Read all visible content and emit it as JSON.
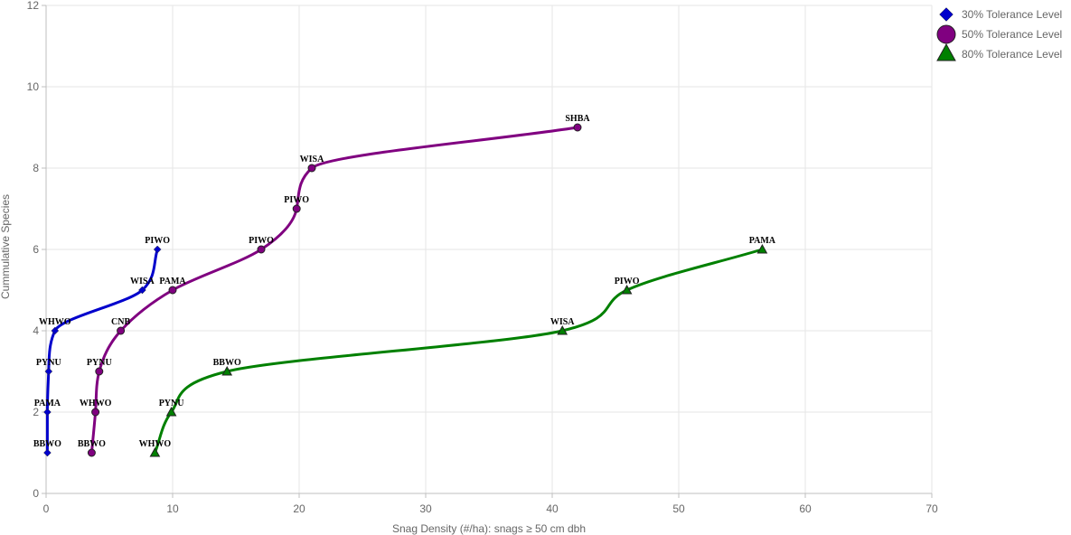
{
  "chart_data": {
    "type": "line",
    "title": "",
    "xlabel": "Snag Density (#/ha): snags ≥ 50 cm dbh",
    "ylabel": "Cummulative Species",
    "xlim": [
      0,
      70
    ],
    "ylim": [
      0,
      12
    ],
    "x_ticks": [
      "0",
      "10",
      "20",
      "30",
      "40",
      "50",
      "60",
      "70"
    ],
    "y_ticks": [
      "0",
      "2",
      "4",
      "6",
      "8",
      "10",
      "12"
    ],
    "grid": true,
    "legend_position": "top-right",
    "series": [
      {
        "name": "30% Tolerance Level",
        "color": "#0000cc",
        "marker": "diamond",
        "points": [
          {
            "x": 0.1,
            "y": 1,
            "label": "BBWO"
          },
          {
            "x": 0.1,
            "y": 2,
            "label": "PAMA"
          },
          {
            "x": 0.2,
            "y": 3,
            "label": "PYNU"
          },
          {
            "x": 0.7,
            "y": 4,
            "label": "WHWO"
          },
          {
            "x": 7.6,
            "y": 5,
            "label": "WISA"
          },
          {
            "x": 8.8,
            "y": 6,
            "label": "PIWO"
          }
        ]
      },
      {
        "name": "50% Tolerance Level",
        "color": "#800080",
        "marker": "circle",
        "points": [
          {
            "x": 3.6,
            "y": 1,
            "label": "BBWO"
          },
          {
            "x": 3.9,
            "y": 2,
            "label": "WHWO"
          },
          {
            "x": 4.2,
            "y": 3,
            "label": "PYNU"
          },
          {
            "x": 5.9,
            "y": 4,
            "label": "CNB"
          },
          {
            "x": 10.0,
            "y": 5,
            "label": "PAMA"
          },
          {
            "x": 17.0,
            "y": 6,
            "label": "PIWO"
          },
          {
            "x": 19.8,
            "y": 7,
            "label": "PIWO"
          },
          {
            "x": 21.0,
            "y": 8,
            "label": "WISA"
          },
          {
            "x": 42.0,
            "y": 9,
            "label": "SHBA"
          }
        ]
      },
      {
        "name": "80% Tolerance Level",
        "color": "#008000",
        "marker": "triangle",
        "points": [
          {
            "x": 8.6,
            "y": 1,
            "label": "WHWO"
          },
          {
            "x": 9.9,
            "y": 2,
            "label": "PYNU"
          },
          {
            "x": 14.3,
            "y": 3,
            "label": "BBWO"
          },
          {
            "x": 40.8,
            "y": 4,
            "label": "WISA"
          },
          {
            "x": 45.9,
            "y": 5,
            "label": "PIWO"
          },
          {
            "x": 56.6,
            "y": 6,
            "label": "PAMA"
          }
        ]
      }
    ]
  }
}
